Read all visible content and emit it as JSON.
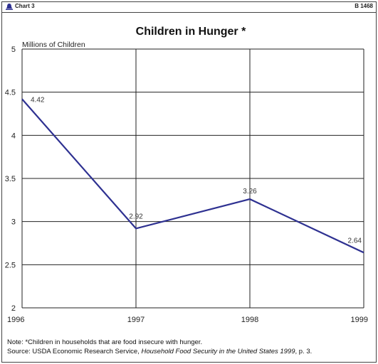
{
  "header": {
    "chart_number": "Chart 3",
    "bill_number": "B 1468"
  },
  "chart_data": {
    "type": "line",
    "title": "Children in Hunger *",
    "ylabel": "Millions of Children",
    "xlabel": "",
    "categories": [
      "1996",
      "1997",
      "1998",
      "1999"
    ],
    "series": [
      {
        "values": [
          4.42,
          2.92,
          3.26,
          2.64
        ],
        "color": "#2e3191"
      }
    ],
    "data_labels": [
      "4.42",
      "2.92",
      "3.26",
      "2.64"
    ],
    "ylim": [
      2,
      5
    ],
    "yticks": [
      "2",
      "2.5",
      "3",
      "3.5",
      "4",
      "4.5",
      "5"
    ],
    "grid": true
  },
  "footnotes": {
    "note": "Note: *Children in households that are food insecure with hunger.",
    "source_prefix": "Source: USDA Economic Research Service, ",
    "source_title": "Household Food Security in the United States 1999",
    "source_suffix": ", p. 3."
  }
}
